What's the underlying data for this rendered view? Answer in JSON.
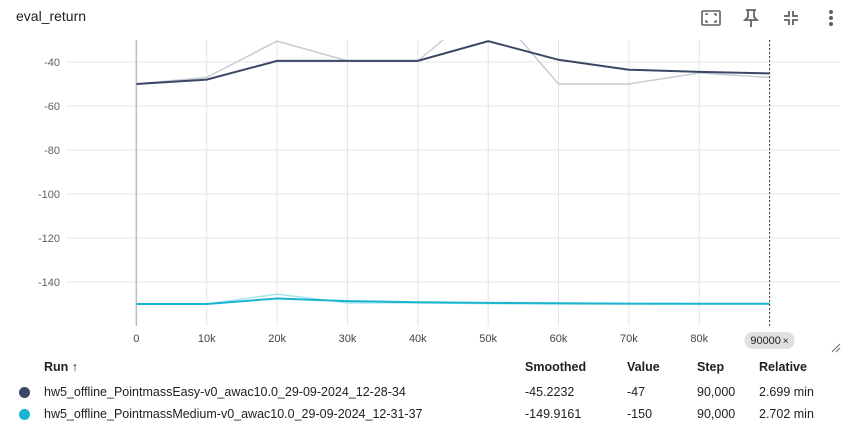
{
  "header": {
    "title": "eval_return",
    "icons": [
      "fit-domain-icon",
      "pin-icon",
      "collapse-icon",
      "more-vert-icon"
    ]
  },
  "colors": {
    "series_easy": "#3b4863",
    "series_easy_raw": "#c8ccd6",
    "series_medium": "#1ab4cf",
    "series_medium_raw": "#a9e4ee",
    "grid": "#e4e4e4",
    "axis": "#bdbdbd"
  },
  "chart_data": {
    "type": "line",
    "ylim": [
      -160,
      -30
    ],
    "xlim": [
      -10000,
      100000
    ],
    "yticks": [
      -40,
      -60,
      -80,
      -100,
      -120,
      -140
    ],
    "xticks": [
      0,
      10000,
      20000,
      30000,
      40000,
      50000,
      60000,
      70000,
      80000,
      90000
    ],
    "xtick_labels": [
      "0",
      "10k",
      "20k",
      "30k",
      "40k",
      "50k",
      "60k",
      "70k",
      "80k",
      "90k"
    ],
    "hover_step_label": "90000",
    "series": [
      {
        "name": "hw5_offline_PointmassEasy-v0_awac10.0_29-09-2024_12-28-34",
        "x": [
          0,
          10000,
          20000,
          30000,
          40000,
          50000,
          60000,
          70000,
          80000,
          90000
        ],
        "smoothed": [
          -50,
          -48,
          -39.5,
          -39.5,
          -39.5,
          -30.5,
          -39,
          -43.5,
          -44.5,
          -45.2
        ],
        "raw": [
          -50,
          -47,
          -30.5,
          -39.5,
          -39.5,
          -13,
          -50,
          -50,
          -45,
          -47
        ]
      },
      {
        "name": "hw5_offline_PointmassMedium-v0_awac10.0_29-09-2024_12-31-37",
        "x": [
          0,
          10000,
          20000,
          30000,
          40000,
          50000,
          60000,
          70000,
          80000,
          90000
        ],
        "smoothed": [
          -150,
          -150,
          -147.5,
          -148.7,
          -149.2,
          -149.5,
          -149.7,
          -149.8,
          -149.9,
          -149.9
        ],
        "raw": [
          -150,
          -150,
          -145.5,
          -149.5,
          -149.5,
          -149.8,
          -150,
          -150,
          -150,
          -150
        ]
      }
    ]
  },
  "table": {
    "headers": {
      "run": "Run ↑",
      "smoothed": "Smoothed",
      "value": "Value",
      "step": "Step",
      "relative": "Relative"
    },
    "rows": [
      {
        "run": "hw5_offline_PointmassEasy-v0_awac10.0_29-09-2024_12-28-34",
        "smoothed": "-45.2232",
        "value": "-47",
        "step": "90,000",
        "relative": "2.699 min"
      },
      {
        "run": "hw5_offline_PointmassMedium-v0_awac10.0_29-09-2024_12-31-37",
        "smoothed": "-149.9161",
        "value": "-150",
        "step": "90,000",
        "relative": "2.702 min"
      }
    ]
  }
}
